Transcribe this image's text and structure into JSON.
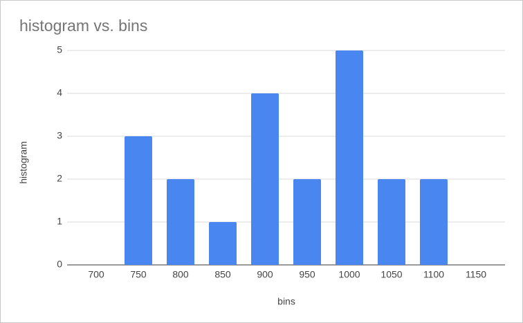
{
  "chart_data": {
    "type": "bar",
    "title": "histogram vs. bins",
    "x_label": "bins",
    "y_label": "histogram",
    "categories": [
      "700",
      "750",
      "800",
      "850",
      "900",
      "950",
      "1000",
      "1050",
      "1100",
      "1150"
    ],
    "values": [
      0,
      3,
      2,
      1,
      4,
      2,
      5,
      2,
      2,
      0
    ],
    "color": "#4a86f0",
    "ylim": [
      0,
      5
    ],
    "yticks": [
      0,
      1,
      2,
      3,
      4,
      5
    ],
    "grid": true
  }
}
